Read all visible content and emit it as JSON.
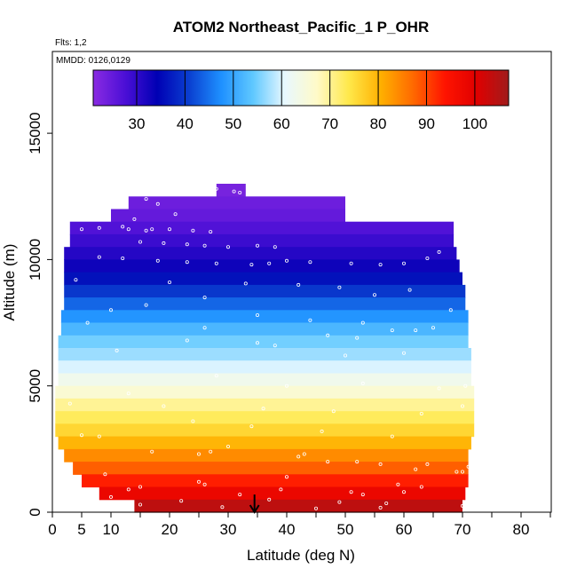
{
  "chart_data": {
    "type": "heatmap",
    "title": "ATOM2 Northeast_Pacific_1 P_OHR",
    "flights_note": "Flts: 1,2",
    "dates_note": "MMDD: 0126,0129",
    "xlabel": "Latitude (deg N)",
    "ylabel": "Altitude (m)",
    "xlim": [
      0,
      85
    ],
    "ylim": [
      0,
      17500
    ],
    "x_ticks": [
      0,
      5,
      10,
      20,
      30,
      40,
      50,
      60,
      70,
      80
    ],
    "x_minor_ticks": [
      15,
      25,
      35,
      45,
      55,
      65,
      75,
      85
    ],
    "y_ticks": [
      0,
      5000,
      10000,
      15000
    ],
    "colorbar": {
      "min": 21,
      "max": 107,
      "ticks": [
        30,
        40,
        50,
        60,
        70,
        80,
        90,
        100
      ],
      "colors": [
        "#8a2be2",
        "#4b0fd6",
        "#0000b4",
        "#0a3fd0",
        "#1e90ff",
        "#5fc8ff",
        "#e8f8ff",
        "#fffac8",
        "#ffe84a",
        "#ffb000",
        "#ff6a00",
        "#ff1400",
        "#e00000",
        "#a01c1c"
      ]
    },
    "layers_alt_m": [
      12750,
      12250,
      11750,
      11250,
      10750,
      10250,
      9750,
      9250,
      8750,
      8250,
      7750,
      7250,
      6750,
      6250,
      5750,
      5250,
      4750,
      4250,
      3750,
      3250,
      2750,
      2250,
      1750,
      1250,
      750,
      250
    ],
    "layers_lat_min": [
      28,
      13,
      10,
      3,
      3,
      2,
      2,
      2,
      2,
      2,
      1.5,
      1.5,
      1,
      1,
      1,
      1,
      0.5,
      0.5,
      0.5,
      0.5,
      1,
      2,
      3.5,
      5,
      8,
      14
    ],
    "layers_lat_max": [
      33,
      50,
      50,
      68.5,
      68.5,
      69,
      69.5,
      70,
      70.5,
      70.5,
      71,
      71,
      71,
      71.5,
      71.5,
      71.5,
      72,
      72,
      72,
      72,
      71.5,
      71,
      71,
      71,
      70.5,
      70
    ],
    "layers_ohr": [
      23,
      24,
      25,
      27,
      29,
      31,
      33,
      36,
      40,
      44,
      48,
      52,
      55,
      57,
      60,
      63,
      66,
      70,
      73,
      76,
      80,
      84,
      88,
      93,
      98,
      104
    ],
    "measurement_points": {
      "lat": [
        28,
        31,
        32,
        16,
        18,
        21,
        14,
        12,
        17,
        2,
        5,
        8,
        13,
        16,
        20,
        24,
        27,
        15,
        19,
        23,
        26,
        30,
        35,
        38,
        8,
        12,
        18,
        23,
        28,
        34,
        37,
        40,
        44,
        51,
        56,
        60,
        64,
        66,
        4,
        20,
        33,
        42,
        49,
        55,
        61,
        10,
        16,
        26,
        35,
        44,
        53,
        62,
        68,
        6,
        26,
        35,
        47,
        52,
        58,
        65,
        11,
        23,
        38,
        50,
        60,
        13,
        28,
        40,
        53,
        66,
        3,
        19,
        36,
        48,
        63,
        24,
        34,
        46,
        58,
        70,
        70.5,
        5,
        8,
        27,
        30,
        43,
        52,
        64,
        71,
        9,
        25,
        40,
        59,
        69,
        13,
        32,
        51,
        63,
        10,
        22,
        37,
        49,
        57,
        15,
        29,
        45,
        56,
        70,
        17,
        25,
        42,
        47,
        56,
        62,
        70,
        15,
        26,
        39,
        53,
        60
      ],
      "alt": [
        12800,
        12700,
        12650,
        12400,
        12200,
        11800,
        11600,
        11300,
        11200,
        11250,
        11200,
        11250,
        11200,
        11150,
        11200,
        11150,
        11100,
        10700,
        10650,
        10600,
        10550,
        10500,
        10550,
        10500,
        10100,
        10050,
        9950,
        9900,
        9850,
        9800,
        9850,
        9950,
        9900,
        9850,
        9800,
        9850,
        10050,
        10300,
        9200,
        9100,
        9050,
        9000,
        8900,
        8600,
        8800,
        8000,
        8200,
        8500,
        7800,
        7600,
        7500,
        7200,
        8000,
        7500,
        7300,
        6700,
        7000,
        6900,
        7200,
        7300,
        6400,
        6800,
        6600,
        6200,
        6300,
        4700,
        5400,
        5000,
        5100,
        4900,
        4300,
        4200,
        4100,
        4000,
        3900,
        3600,
        3400,
        3200,
        3000,
        4200,
        5000,
        3050,
        3000,
        2400,
        2600,
        2300,
        2000,
        1900,
        1800,
        1500,
        1200,
        1400,
        1100,
        1600,
        900,
        700,
        800,
        1000,
        600,
        450,
        500,
        400,
        350,
        300,
        200,
        150,
        180,
        250,
        2400,
        2300,
        2200,
        2000,
        1900,
        1700,
        1600,
        1000,
        1100,
        900,
        700,
        800
      ]
    },
    "arrow_marker": {
      "lat": 34.5,
      "alt_top": 700,
      "alt_bottom": 0
    },
    "grid": false,
    "legend": "colorbar-top"
  }
}
